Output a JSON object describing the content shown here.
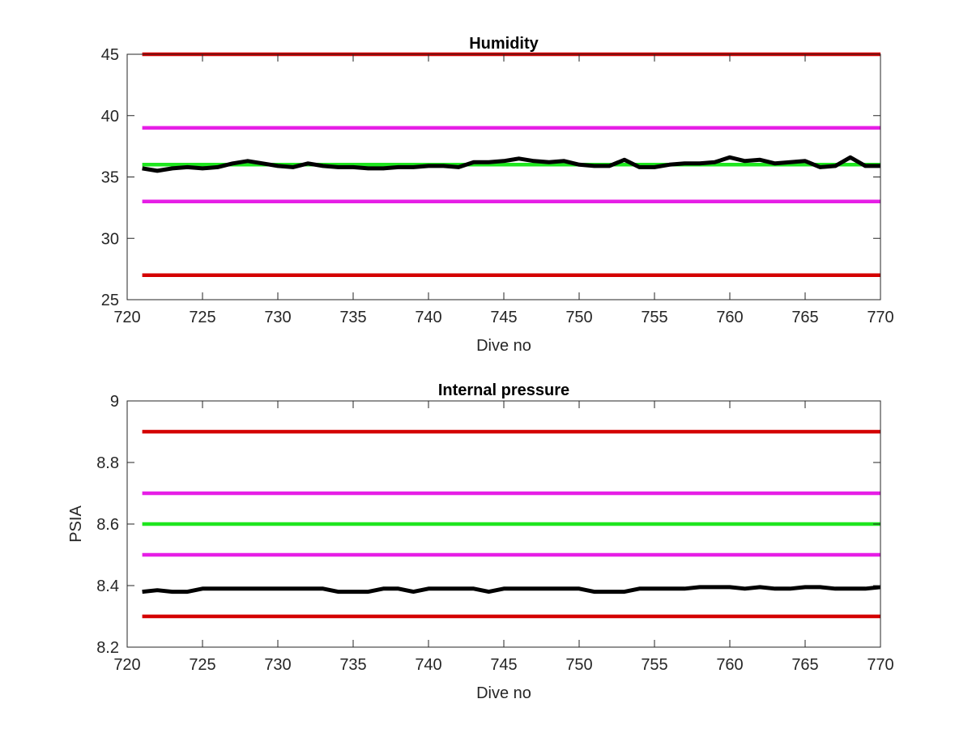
{
  "chart_data": [
    {
      "type": "line",
      "title": "Humidity",
      "xlabel": "Dive no",
      "ylabel": "",
      "xlim": [
        720,
        770
      ],
      "ylim": [
        25,
        45
      ],
      "xticks": [
        720,
        725,
        730,
        735,
        740,
        745,
        750,
        755,
        760,
        765,
        770
      ],
      "yticks": [
        25,
        30,
        35,
        40,
        45
      ],
      "grid": false,
      "series": [
        {
          "values": [
            [
              721,
              45
            ],
            [
              770,
              45
            ]
          ],
          "color": "#d40000"
        },
        {
          "values": [
            [
              721,
              39
            ],
            [
              770,
              39
            ]
          ],
          "color": "#e61ee6"
        },
        {
          "values": [
            [
              721,
              36
            ],
            [
              770,
              36
            ]
          ],
          "color": "#1ee61e"
        },
        {
          "values": [
            [
              721,
              33
            ],
            [
              770,
              33
            ]
          ],
          "color": "#e61ee6"
        },
        {
          "values": [
            [
              721,
              27
            ],
            [
              770,
              27
            ]
          ],
          "color": "#d40000"
        },
        {
          "values": [
            [
              721,
              35.7
            ],
            [
              722,
              35.5
            ],
            [
              723,
              35.7
            ],
            [
              724,
              35.8
            ],
            [
              725,
              35.7
            ],
            [
              726,
              35.8
            ],
            [
              727,
              36.1
            ],
            [
              728,
              36.3
            ],
            [
              729,
              36.1
            ],
            [
              730,
              35.9
            ],
            [
              731,
              35.8
            ],
            [
              732,
              36.1
            ],
            [
              733,
              35.9
            ],
            [
              734,
              35.8
            ],
            [
              735,
              35.8
            ],
            [
              736,
              35.7
            ],
            [
              737,
              35.7
            ],
            [
              738,
              35.8
            ],
            [
              739,
              35.8
            ],
            [
              740,
              35.9
            ],
            [
              741,
              35.9
            ],
            [
              742,
              35.8
            ],
            [
              743,
              36.2
            ],
            [
              744,
              36.2
            ],
            [
              745,
              36.3
            ],
            [
              746,
              36.5
            ],
            [
              747,
              36.3
            ],
            [
              748,
              36.2
            ],
            [
              749,
              36.3
            ],
            [
              750,
              36.0
            ],
            [
              751,
              35.9
            ],
            [
              752,
              35.9
            ],
            [
              753,
              36.4
            ],
            [
              754,
              35.8
            ],
            [
              755,
              35.8
            ],
            [
              756,
              36.0
            ],
            [
              757,
              36.1
            ],
            [
              758,
              36.1
            ],
            [
              759,
              36.2
            ],
            [
              760,
              36.6
            ],
            [
              761,
              36.3
            ],
            [
              762,
              36.4
            ],
            [
              763,
              36.1
            ],
            [
              764,
              36.2
            ],
            [
              765,
              36.3
            ],
            [
              766,
              35.8
            ],
            [
              767,
              35.9
            ],
            [
              768,
              36.6
            ],
            [
              769,
              35.9
            ],
            [
              770,
              35.9
            ]
          ],
          "color": "#000000"
        }
      ]
    },
    {
      "type": "line",
      "title": "Internal pressure",
      "xlabel": "Dive no",
      "ylabel": "PSIA",
      "xlim": [
        720,
        770
      ],
      "ylim": [
        8.2,
        9
      ],
      "xticks": [
        720,
        725,
        730,
        735,
        740,
        745,
        750,
        755,
        760,
        765,
        770
      ],
      "yticks": [
        "8.2",
        "8.4",
        "8.6",
        "8.8",
        "9"
      ],
      "grid": false,
      "series": [
        {
          "values": [
            [
              721,
              8.9
            ],
            [
              770,
              8.9
            ]
          ],
          "color": "#d40000"
        },
        {
          "values": [
            [
              721,
              8.7
            ],
            [
              770,
              8.7
            ]
          ],
          "color": "#e61ee6"
        },
        {
          "values": [
            [
              721,
              8.6
            ],
            [
              770,
              8.6
            ]
          ],
          "color": "#1ee61e"
        },
        {
          "values": [
            [
              721,
              8.5
            ],
            [
              770,
              8.5
            ]
          ],
          "color": "#e61ee6"
        },
        {
          "values": [
            [
              721,
              8.3
            ],
            [
              770,
              8.3
            ]
          ],
          "color": "#d40000"
        },
        {
          "values": [
            [
              721,
              8.38
            ],
            [
              722,
              8.385
            ],
            [
              723,
              8.38
            ],
            [
              724,
              8.38
            ],
            [
              725,
              8.39
            ],
            [
              726,
              8.39
            ],
            [
              727,
              8.39
            ],
            [
              728,
              8.39
            ],
            [
              729,
              8.39
            ],
            [
              730,
              8.39
            ],
            [
              731,
              8.39
            ],
            [
              732,
              8.39
            ],
            [
              733,
              8.39
            ],
            [
              734,
              8.38
            ],
            [
              735,
              8.38
            ],
            [
              736,
              8.38
            ],
            [
              737,
              8.39
            ],
            [
              738,
              8.39
            ],
            [
              739,
              8.38
            ],
            [
              740,
              8.39
            ],
            [
              741,
              8.39
            ],
            [
              742,
              8.39
            ],
            [
              743,
              8.39
            ],
            [
              744,
              8.38
            ],
            [
              745,
              8.39
            ],
            [
              746,
              8.39
            ],
            [
              747,
              8.39
            ],
            [
              748,
              8.39
            ],
            [
              749,
              8.39
            ],
            [
              750,
              8.39
            ],
            [
              751,
              8.38
            ],
            [
              752,
              8.38
            ],
            [
              753,
              8.38
            ],
            [
              754,
              8.39
            ],
            [
              755,
              8.39
            ],
            [
              756,
              8.39
            ],
            [
              757,
              8.39
            ],
            [
              758,
              8.395
            ],
            [
              759,
              8.395
            ],
            [
              760,
              8.395
            ],
            [
              761,
              8.39
            ],
            [
              762,
              8.395
            ],
            [
              763,
              8.39
            ],
            [
              764,
              8.39
            ],
            [
              765,
              8.395
            ],
            [
              766,
              8.395
            ],
            [
              767,
              8.39
            ],
            [
              768,
              8.39
            ],
            [
              769,
              8.39
            ],
            [
              770,
              8.395
            ]
          ],
          "color": "#000000"
        }
      ]
    }
  ]
}
